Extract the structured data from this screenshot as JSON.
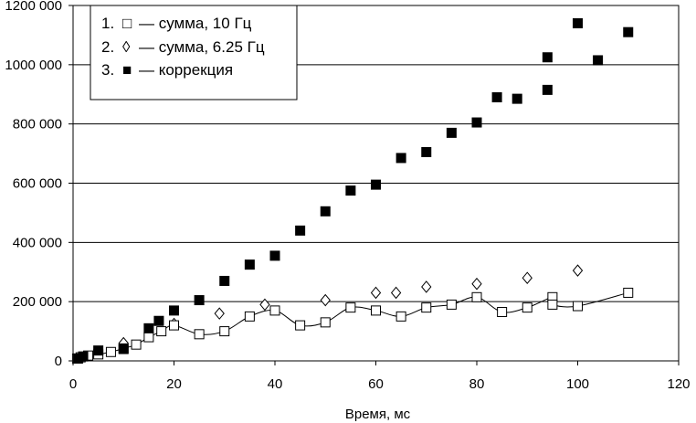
{
  "chart_data": {
    "type": "scatter",
    "title": "",
    "xlabel": "Время,  мс",
    "ylabel": "",
    "xlim": [
      0,
      120
    ],
    "ylim": [
      0,
      1200000
    ],
    "x_ticks": [
      0,
      20,
      40,
      60,
      80,
      100,
      120
    ],
    "x_tick_labels": [
      "0",
      "20",
      "40",
      "60",
      "80",
      "100",
      "120"
    ],
    "y_ticks": [
      0,
      200000,
      400000,
      600000,
      800000,
      1000000,
      1200000
    ],
    "y_tick_labels": [
      "0",
      "200 000",
      "400 000",
      "600 000",
      "800 000",
      "1000 000",
      "1200 000"
    ],
    "grid": "horizontal",
    "legend_position": "top-left",
    "legend": [
      {
        "num": "1.",
        "marker": "□",
        "text": "— сумма, 10 Гц"
      },
      {
        "num": "2.",
        "marker": "◊",
        "text": "— сумма, 6.25 Гц"
      },
      {
        "num": "3.",
        "marker": "■",
        "text": "— коррекция"
      }
    ],
    "series": [
      {
        "name": "сумма, 10 Гц",
        "marker": "open-square",
        "line": true,
        "x": [
          0.8,
          1.5,
          3,
          5,
          7.5,
          10,
          12.5,
          15,
          17.5,
          20,
          25,
          30,
          35,
          40,
          45,
          50,
          55,
          60,
          65,
          70,
          75,
          80,
          85,
          90,
          95,
          95,
          100,
          110
        ],
        "y": [
          8000,
          12000,
          18000,
          22000,
          30000,
          42000,
          55000,
          80000,
          100000,
          120000,
          90000,
          100000,
          150000,
          170000,
          120000,
          130000,
          180000,
          170000,
          150000,
          180000,
          190000,
          215000,
          165000,
          180000,
          215000,
          190000,
          185000,
          230000
        ]
      },
      {
        "name": "сумма, 6.25 Гц",
        "marker": "open-diamond",
        "line": false,
        "x": [
          10,
          20,
          29,
          38,
          50,
          60,
          64,
          70,
          80,
          90,
          100
        ],
        "y": [
          60000,
          125000,
          160000,
          190000,
          205000,
          230000,
          230000,
          250000,
          260000,
          280000,
          305000
        ]
      },
      {
        "name": "коррекция",
        "marker": "filled-square",
        "line": false,
        "x": [
          1,
          2,
          5,
          10,
          15,
          17,
          20,
          25,
          30,
          35,
          40,
          45,
          50,
          55,
          60,
          65,
          70,
          75,
          80,
          84,
          88,
          94,
          94,
          100,
          104,
          110
        ],
        "y": [
          8000,
          15000,
          35000,
          40000,
          110000,
          135000,
          170000,
          205000,
          270000,
          325000,
          355000,
          440000,
          505000,
          575000,
          595000,
          685000,
          705000,
          770000,
          805000,
          890000,
          885000,
          915000,
          1025000,
          1140000,
          1015000,
          1110000
        ]
      }
    ]
  }
}
